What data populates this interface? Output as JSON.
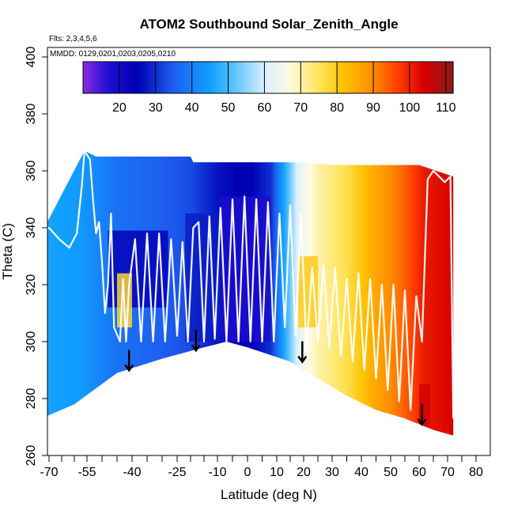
{
  "chart_data": {
    "type": "scatter",
    "title": "ATOM2 Southbound Solar_Zenith_Angle",
    "flights_note": "Flts: 2,3,4,5,6",
    "dates_note": "MMDD: 0129,0201,0203,0205,0210",
    "xlabel": "Latitude (deg N)",
    "ylabel": "Theta (C)",
    "xlim": [
      -70,
      80
    ],
    "ylim": [
      260,
      400
    ],
    "x_ticks": [
      -70,
      -55,
      -40,
      -25,
      -10,
      0,
      10,
      20,
      30,
      40,
      50,
      60,
      70,
      80
    ],
    "x_minor_ticks": [
      -65,
      -60,
      -50,
      -45,
      -35,
      -30,
      -20,
      -15,
      -5,
      5,
      15,
      25,
      35,
      45,
      55,
      65,
      75
    ],
    "y_ticks": [
      260,
      280,
      300,
      320,
      340,
      360,
      380,
      400
    ],
    "colorbar": {
      "min": 10,
      "max": 112,
      "ticks": [
        20,
        30,
        40,
        50,
        60,
        70,
        80,
        90,
        100,
        110
      ],
      "stops": [
        {
          "v": 10,
          "c": "#8a2be2"
        },
        {
          "v": 17,
          "c": "#1f0fd4"
        },
        {
          "v": 25,
          "c": "#0000b3"
        },
        {
          "v": 35,
          "c": "#1e5ff0"
        },
        {
          "v": 45,
          "c": "#10a0ff"
        },
        {
          "v": 52,
          "c": "#60c4ff"
        },
        {
          "v": 60,
          "c": "#d8f0ff"
        },
        {
          "v": 67,
          "c": "#fffbe0"
        },
        {
          "v": 75,
          "c": "#ffe45a"
        },
        {
          "v": 82,
          "c": "#ffc000"
        },
        {
          "v": 90,
          "c": "#ff8c00"
        },
        {
          "v": 97,
          "c": "#ff3c00"
        },
        {
          "v": 104,
          "c": "#d80000"
        },
        {
          "v": 112,
          "c": "#8b1a1a"
        }
      ]
    },
    "sza_profile": [
      {
        "lat": -73,
        "sza": 46
      },
      {
        "lat": -57,
        "sza": 44
      },
      {
        "lat": -45,
        "sza": 38
      },
      {
        "lat": -35,
        "sza": 36
      },
      {
        "lat": -20,
        "sza": 33
      },
      {
        "lat": -10,
        "sza": 27
      },
      {
        "lat": 0,
        "sza": 24
      },
      {
        "lat": 8,
        "sza": 30
      },
      {
        "lat": 12,
        "sza": 44
      },
      {
        "lat": 18,
        "sza": 62
      },
      {
        "lat": 25,
        "sza": 70
      },
      {
        "lat": 35,
        "sza": 76
      },
      {
        "lat": 45,
        "sza": 86
      },
      {
        "lat": 55,
        "sza": 94
      },
      {
        "lat": 62,
        "sza": 101
      },
      {
        "lat": 72,
        "sza": 104
      }
    ],
    "data_envelope_top": [
      {
        "lat": -73,
        "theta": 338
      },
      {
        "lat": -56,
        "theta": 367
      },
      {
        "lat": -52,
        "theta": 365
      },
      {
        "lat": -20,
        "theta": 365
      },
      {
        "lat": -19,
        "theta": 363
      },
      {
        "lat": 20,
        "theta": 363
      },
      {
        "lat": 30,
        "theta": 362
      },
      {
        "lat": 60,
        "theta": 362
      },
      {
        "lat": 72,
        "theta": 358
      }
    ],
    "data_envelope_bottom": [
      {
        "lat": -73,
        "theta": 273
      },
      {
        "lat": -60,
        "theta": 278
      },
      {
        "lat": -45,
        "theta": 289
      },
      {
        "lat": -30,
        "theta": 294
      },
      {
        "lat": -15,
        "theta": 298
      },
      {
        "lat": -7,
        "theta": 300
      },
      {
        "lat": 0,
        "theta": 298
      },
      {
        "lat": 15,
        "theta": 293
      },
      {
        "lat": 25,
        "theta": 287
      },
      {
        "lat": 35,
        "theta": 281
      },
      {
        "lat": 45,
        "theta": 276
      },
      {
        "lat": 55,
        "theta": 273
      },
      {
        "lat": 65,
        "theta": 269
      },
      {
        "lat": 72,
        "theta": 267
      }
    ],
    "dark_columns": [
      {
        "lat_min": -9,
        "lat_max": 8,
        "theta_min": 300,
        "theta_max": 351,
        "sza": 18
      },
      {
        "lat_min": -48,
        "lat_max": -28,
        "theta_min": 312,
        "theta_max": 339,
        "sza": 24
      },
      {
        "lat_min": -22,
        "lat_max": -9,
        "theta_min": 300,
        "theta_max": 345,
        "sza": 28
      },
      {
        "lat_min": -45,
        "lat_max": -40,
        "theta_min": 305,
        "theta_max": 324,
        "sza": 78
      },
      {
        "lat_min": 18,
        "lat_max": 25,
        "theta_min": 305,
        "theta_max": 330,
        "sza": 80
      },
      {
        "lat_min": 60,
        "lat_max": 64,
        "theta_min": 270,
        "theta_max": 285,
        "sza": 104
      }
    ],
    "flight_tracks": [
      [
        [
          -73,
          274
        ],
        [
          -73,
          338
        ],
        [
          -70,
          340
        ],
        [
          -66,
          336
        ],
        [
          -62,
          333
        ],
        [
          -59,
          338
        ],
        [
          -57,
          355
        ],
        [
          -56,
          367
        ],
        [
          -54,
          364
        ],
        [
          -53,
          350
        ],
        [
          -52,
          338
        ],
        [
          -51,
          342
        ],
        [
          -50,
          328
        ],
        [
          -49,
          310
        ],
        [
          -48,
          320
        ],
        [
          -47,
          345
        ],
        [
          -46,
          305
        ],
        [
          -44,
          300
        ],
        [
          -43,
          322
        ],
        [
          -42,
          300
        ],
        [
          -41,
          320
        ],
        [
          -39,
          336
        ],
        [
          -37,
          300
        ],
        [
          -35,
          338
        ],
        [
          -33,
          300
        ],
        [
          -31,
          338
        ],
        [
          -29,
          300
        ],
        [
          -27,
          336
        ],
        [
          -25,
          302
        ],
        [
          -23,
          335
        ],
        [
          -21,
          300
        ],
        [
          -19,
          340
        ],
        [
          -17,
          342
        ],
        [
          -15,
          300
        ],
        [
          -13,
          344
        ],
        [
          -11,
          301
        ],
        [
          -9,
          347
        ],
        [
          -7,
          300
        ],
        [
          -5,
          350
        ],
        [
          -3,
          300
        ],
        [
          -1,
          351
        ],
        [
          1,
          300
        ],
        [
          3,
          350
        ],
        [
          5,
          300
        ],
        [
          7,
          349
        ],
        [
          9,
          300
        ],
        [
          11,
          345
        ],
        [
          13,
          305
        ],
        [
          15,
          348
        ],
        [
          17,
          302
        ],
        [
          19,
          345
        ],
        [
          21,
          297
        ],
        [
          23,
          326
        ],
        [
          25,
          300
        ],
        [
          27,
          327
        ],
        [
          29,
          298
        ],
        [
          31,
          326
        ],
        [
          33,
          295
        ],
        [
          35,
          322
        ],
        [
          37,
          293
        ],
        [
          39,
          324
        ],
        [
          41,
          290
        ],
        [
          43,
          322
        ],
        [
          45,
          287
        ],
        [
          47,
          320
        ],
        [
          49,
          283
        ],
        [
          51,
          320
        ],
        [
          53,
          279
        ],
        [
          55,
          318
        ],
        [
          57,
          276
        ],
        [
          59,
          316
        ],
        [
          61,
          300
        ],
        [
          63,
          357
        ],
        [
          65,
          360
        ],
        [
          67,
          358
        ],
        [
          69,
          356
        ],
        [
          71,
          358
        ],
        [
          72,
          273
        ]
      ]
    ],
    "arrows": [
      {
        "lat": -41,
        "theta": 296
      },
      {
        "lat": -18,
        "theta": 303
      },
      {
        "lat": 19.5,
        "theta": 299
      },
      {
        "lat": 61,
        "theta": 277
      }
    ]
  }
}
